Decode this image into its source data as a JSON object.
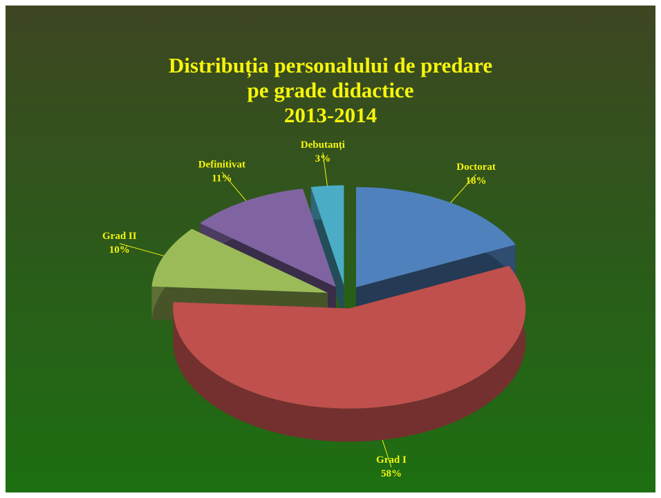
{
  "chart_data": {
    "type": "pie",
    "title": [
      "Distribuția personalului de predare",
      "pe grade didactice",
      "2013-2014"
    ],
    "categories": [
      "Doctorat",
      "Grad I",
      "Grad II",
      "Definitivat",
      "Debutanți"
    ],
    "values": [
      18,
      58,
      10,
      11,
      3
    ],
    "value_labels": [
      "18%",
      "58%",
      "10%",
      "11%",
      "3%"
    ],
    "colors": [
      "#4f81bd",
      "#c0504d",
      "#9bbb59",
      "#8064a2",
      "#4bacc6"
    ]
  }
}
